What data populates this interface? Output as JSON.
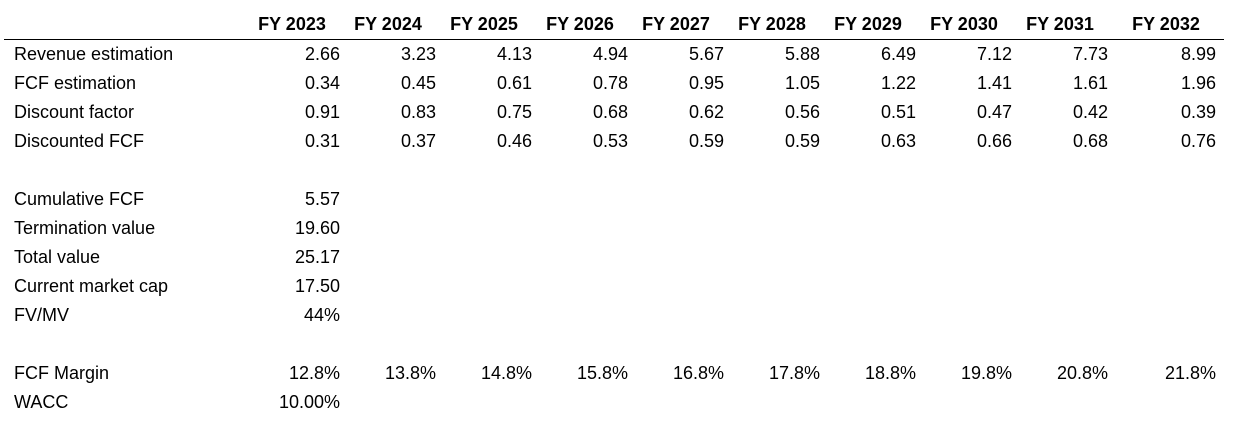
{
  "header": {
    "years": [
      "FY 2023",
      "FY 2024",
      "FY 2025",
      "FY 2026",
      "FY 2027",
      "FY 2028",
      "FY 2029",
      "FY 2030",
      "FY 2031",
      "FY 2032"
    ]
  },
  "projection": [
    {
      "label": "Revenue estimation",
      "values": [
        "2.66",
        "3.23",
        "4.13",
        "4.94",
        "5.67",
        "5.88",
        "6.49",
        "7.12",
        "7.73",
        "8.99"
      ]
    },
    {
      "label": "FCF estimation",
      "values": [
        "0.34",
        "0.45",
        "0.61",
        "0.78",
        "0.95",
        "1.05",
        "1.22",
        "1.41",
        "1.61",
        "1.96"
      ]
    },
    {
      "label": "Discount factor",
      "values": [
        "0.91",
        "0.83",
        "0.75",
        "0.68",
        "0.62",
        "0.56",
        "0.51",
        "0.47",
        "0.42",
        "0.39"
      ]
    },
    {
      "label": "Discounted FCF",
      "values": [
        "0.31",
        "0.37",
        "0.46",
        "0.53",
        "0.59",
        "0.59",
        "0.63",
        "0.66",
        "0.68",
        "0.76"
      ]
    }
  ],
  "summary": [
    {
      "label": "Cumulative FCF",
      "value": "5.57"
    },
    {
      "label": "Termination value",
      "value": "19.60"
    },
    {
      "label": "Total value",
      "value": "25.17"
    },
    {
      "label": "Current market cap",
      "value": "17.50"
    },
    {
      "label": "FV/MV",
      "value": "44%"
    }
  ],
  "assumptions": {
    "fcf_margin": {
      "label": "FCF Margin",
      "values": [
        "12.8%",
        "13.8%",
        "14.8%",
        "15.8%",
        "16.8%",
        "17.8%",
        "18.8%",
        "19.8%",
        "20.8%",
        "21.8%"
      ]
    },
    "wacc": {
      "label": "WACC",
      "value": "10.00%"
    }
  }
}
